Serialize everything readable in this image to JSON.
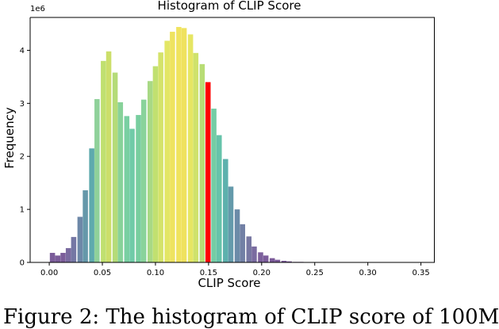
{
  "chart_data": {
    "type": "bar",
    "title": "Histogram of CLIP Score",
    "xlabel": "CLIP Score",
    "ylabel": "Frequency",
    "y_multiplier": "1e6",
    "xlim": [
      -0.018,
      0.363
    ],
    "ylim": [
      0,
      4.62
    ],
    "grid": false,
    "x_ticks": [
      0.0,
      0.05,
      0.1,
      0.15,
      0.2,
      0.25,
      0.3,
      0.35
    ],
    "x_tick_labels": [
      "0.00",
      "0.05",
      "0.10",
      "0.15",
      "0.20",
      "0.25",
      "0.30",
      "0.35"
    ],
    "y_ticks": [
      0,
      1,
      2,
      3,
      4
    ],
    "y_tick_labels": [
      "0",
      "1",
      "2",
      "3",
      "4"
    ],
    "bin_width": 0.0055,
    "highlight_color": "#ff0000",
    "bins": [
      {
        "x": 0.003,
        "value": 0.18,
        "color": "#7b5d9a"
      },
      {
        "x": 0.008,
        "value": 0.13,
        "color": "#7b5d9a"
      },
      {
        "x": 0.013,
        "value": 0.18,
        "color": "#7b5d9a"
      },
      {
        "x": 0.018,
        "value": 0.27,
        "color": "#7a6ba0"
      },
      {
        "x": 0.023,
        "value": 0.48,
        "color": "#7577a4"
      },
      {
        "x": 0.029,
        "value": 0.86,
        "color": "#6d88a8"
      },
      {
        "x": 0.034,
        "value": 1.36,
        "color": "#6598aa"
      },
      {
        "x": 0.04,
        "value": 2.15,
        "color": "#5eaaad"
      },
      {
        "x": 0.045,
        "value": 3.08,
        "color": "#8fd19a"
      },
      {
        "x": 0.051,
        "value": 3.8,
        "color": "#c0e070"
      },
      {
        "x": 0.056,
        "value": 3.98,
        "color": "#ccdf6a"
      },
      {
        "x": 0.062,
        "value": 3.58,
        "color": "#b5db78"
      },
      {
        "x": 0.067,
        "value": 3.02,
        "color": "#88d29a"
      },
      {
        "x": 0.073,
        "value": 2.76,
        "color": "#79cfa2"
      },
      {
        "x": 0.078,
        "value": 2.52,
        "color": "#70cba8"
      },
      {
        "x": 0.084,
        "value": 2.78,
        "color": "#78ce9f"
      },
      {
        "x": 0.089,
        "value": 3.07,
        "color": "#89d39b"
      },
      {
        "x": 0.095,
        "value": 3.42,
        "color": "#a8d985"
      },
      {
        "x": 0.1,
        "value": 3.7,
        "color": "#c1e070"
      },
      {
        "x": 0.105,
        "value": 3.96,
        "color": "#d4e36a"
      },
      {
        "x": 0.111,
        "value": 4.18,
        "color": "#e3e665"
      },
      {
        "x": 0.116,
        "value": 4.35,
        "color": "#eee35f"
      },
      {
        "x": 0.122,
        "value": 4.44,
        "color": "#f0e35e"
      },
      {
        "x": 0.127,
        "value": 4.42,
        "color": "#efe25e"
      },
      {
        "x": 0.133,
        "value": 4.3,
        "color": "#e6e663"
      },
      {
        "x": 0.138,
        "value": 3.95,
        "color": "#cfe26b"
      },
      {
        "x": 0.144,
        "value": 3.74,
        "color": "#b8dd75"
      },
      {
        "x": 0.1495,
        "value": 3.4,
        "color": "#ff0000"
      },
      {
        "x": 0.155,
        "value": 2.9,
        "color": "#74cda5"
      },
      {
        "x": 0.16,
        "value": 2.4,
        "color": "#66c3aa"
      },
      {
        "x": 0.166,
        "value": 1.95,
        "color": "#5db1ad"
      },
      {
        "x": 0.171,
        "value": 1.43,
        "color": "#649aab"
      },
      {
        "x": 0.177,
        "value": 1.0,
        "color": "#6c8ba8"
      },
      {
        "x": 0.182,
        "value": 0.72,
        "color": "#7280a5"
      },
      {
        "x": 0.188,
        "value": 0.49,
        "color": "#7777a2"
      },
      {
        "x": 0.193,
        "value": 0.3,
        "color": "#7a6ca0"
      },
      {
        "x": 0.199,
        "value": 0.19,
        "color": "#7c609c"
      },
      {
        "x": 0.204,
        "value": 0.13,
        "color": "#7c5c9b"
      },
      {
        "x": 0.21,
        "value": 0.08,
        "color": "#7b5a99"
      },
      {
        "x": 0.215,
        "value": 0.05,
        "color": "#7b5a99"
      },
      {
        "x": 0.221,
        "value": 0.03,
        "color": "#7b5a99"
      },
      {
        "x": 0.226,
        "value": 0.02,
        "color": "#7b5a99"
      },
      {
        "x": 0.232,
        "value": 0.01,
        "color": "#7b5a99"
      },
      {
        "x": 0.237,
        "value": 0.01,
        "color": "#7b5a99"
      },
      {
        "x": 0.243,
        "value": 0.005,
        "color": "#7b5a99"
      },
      {
        "x": 0.248,
        "value": 0.004,
        "color": "#7b5a99"
      },
      {
        "x": 0.254,
        "value": 0.003,
        "color": "#7b5a99"
      },
      {
        "x": 0.259,
        "value": 0.002,
        "color": "#7b5a99"
      },
      {
        "x": 0.265,
        "value": 0.002,
        "color": "#7b5a99"
      },
      {
        "x": 0.27,
        "value": 0.001,
        "color": "#7b5a99"
      },
      {
        "x": 0.276,
        "value": 0.001,
        "color": "#7b5a99"
      },
      {
        "x": 0.281,
        "value": 0.001,
        "color": "#7b5a99"
      }
    ]
  },
  "caption": "Figure 2: The histogram of CLIP score of 100M"
}
